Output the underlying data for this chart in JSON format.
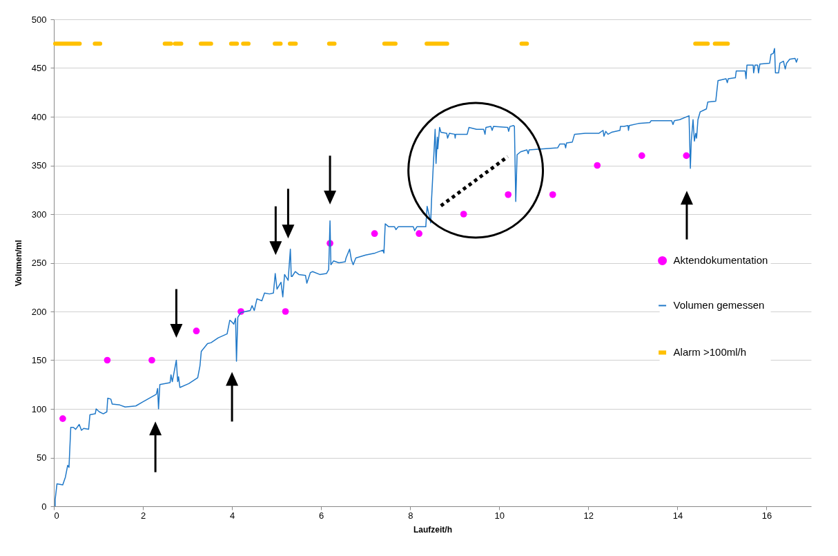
{
  "chart_data": {
    "type": "line",
    "xlabel": "Laufzeit/h",
    "ylabel": "Volumen/ml",
    "xlim": [
      0,
      17
    ],
    "xticks": [
      0,
      2,
      4,
      6,
      8,
      10,
      12,
      14,
      16
    ],
    "ylim": [
      0,
      500
    ],
    "yticks": [
      0,
      50,
      100,
      150,
      200,
      250,
      300,
      350,
      400,
      450,
      500
    ],
    "grid": "y",
    "legend": "right",
    "series": [
      {
        "name": "Aktendokumentation",
        "type": "scatter",
        "marker": "circle",
        "color": "#ff00ff",
        "x": [
          0.2,
          1.2,
          2.2,
          3.2,
          4.2,
          5.2,
          6.2,
          7.2,
          8.2,
          9.2,
          10.2,
          11.2,
          12.2,
          13.2,
          14.2
        ],
        "values": [
          90,
          150,
          150,
          180,
          200,
          200,
          270,
          280,
          280,
          300,
          320,
          320,
          350,
          360,
          360
        ]
      },
      {
        "name": "Volumen gemessen",
        "type": "line",
        "color": "#1f78c8",
        "x": [
          0.03,
          0.03,
          0.07,
          0.2,
          0.26,
          0.31,
          0.34,
          0.38,
          0.44,
          0.49,
          0.57,
          0.62,
          0.67,
          0.78,
          0.81,
          0.93,
          0.95,
          1.02,
          1.11,
          1.19,
          1.21,
          1.28,
          1.31,
          1.48,
          1.6,
          1.84,
          1.99,
          2.3,
          2.33,
          2.35,
          2.38,
          2.61,
          2.63,
          2.66,
          2.75,
          2.78,
          2.8,
          2.83,
          3.03,
          3.23,
          3.28,
          3.31,
          3.45,
          3.53,
          3.69,
          3.89,
          3.95,
          3.98,
          4.04,
          4.08,
          4.1,
          4.13,
          4.2,
          4.41,
          4.45,
          4.5,
          4.56,
          4.67,
          4.73,
          4.84,
          4.93,
          4.97,
          5.01,
          5.1,
          5.14,
          5.18,
          5.26,
          5.31,
          5.33,
          5.35,
          5.42,
          5.5,
          5.65,
          5.68,
          5.76,
          5.81,
          5.97,
          6.12,
          6.17,
          6.2,
          6.22,
          6.28,
          6.4,
          6.54,
          6.56,
          6.64,
          6.68,
          6.72,
          6.78,
          7.0,
          7.21,
          7.39,
          7.41,
          7.44,
          7.52,
          7.65,
          7.68,
          7.73,
          8.07,
          8.1,
          8.15,
          8.33,
          8.35,
          8.38,
          8.43,
          8.46,
          8.48,
          8.56,
          8.58,
          8.61,
          8.62,
          8.66,
          8.69,
          8.82,
          8.84,
          8.88,
          9.0,
          9.01,
          9.02,
          9.28,
          9.32,
          9.49,
          9.65,
          9.68,
          9.7,
          9.81,
          9.84,
          9.87,
          10.19,
          10.21,
          10.24,
          10.32,
          10.34,
          10.37,
          10.4,
          10.48,
          10.62,
          10.65,
          10.67,
          11.31,
          11.36,
          11.47,
          11.49,
          11.51,
          11.64,
          11.69,
          11.93,
          12.24,
          12.33,
          12.35,
          12.39,
          12.44,
          12.52,
          12.71,
          12.72,
          12.8,
          12.89,
          12.9,
          12.92,
          13.12,
          13.38,
          13.41,
          13.87,
          13.9,
          13.93,
          14.05,
          14.26,
          14.29,
          14.31,
          14.35,
          14.38,
          14.41,
          14.43,
          14.46,
          14.51,
          14.65,
          14.68,
          14.86,
          14.91,
          15.09,
          15.12,
          15.14,
          15.3,
          15.32,
          15.52,
          15.54,
          15.56,
          15.7,
          15.71,
          15.74,
          15.8,
          15.82,
          15.85,
          16.07,
          16.1,
          16.15,
          16.18,
          16.2,
          16.27,
          16.3,
          16.38,
          16.42,
          16.45,
          16.52,
          16.64,
          16.67,
          16.7
        ],
        "values": [
          0,
          7,
          23,
          22,
          30,
          42,
          40,
          81,
          81,
          79,
          84,
          78,
          80,
          79,
          94,
          95,
          100,
          97,
          95,
          97,
          111,
          110,
          105,
          104,
          102,
          103,
          107,
          115,
          121,
          100,
          125,
          127,
          135,
          128,
          150,
          128,
          133,
          122,
          126,
          132,
          144,
          159,
          167,
          168,
          173,
          177,
          191,
          190,
          187,
          193,
          149,
          194,
          199,
          201,
          206,
          201,
          213,
          211,
          219,
          218,
          219,
          239,
          223,
          230,
          215,
          238,
          232,
          264,
          236,
          236,
          241,
          238,
          237,
          229,
          240,
          241,
          238,
          239,
          243,
          293,
          248,
          252,
          250,
          251,
          255,
          264,
          253,
          248,
          255,
          258,
          260,
          263,
          260,
          290,
          287,
          287,
          284,
          287,
          287,
          283,
          287,
          287,
          287,
          308,
          298,
          291,
          315,
          387,
          352,
          379,
          367,
          389,
          384,
          383,
          378,
          383,
          382,
          378,
          382,
          382,
          389,
          387,
          387,
          382,
          389,
          390,
          386,
          390,
          389,
          385,
          390,
          391,
          390,
          313,
          361,
          364,
          366,
          362,
          366,
          368,
          372,
          372,
          368,
          373,
          374,
          382,
          383,
          383,
          386,
          380,
          385,
          382,
          384,
          386,
          390,
          390,
          391,
          386,
          391,
          393,
          394,
          396,
          396,
          392,
          396,
          397,
          401,
          347,
          375,
          397,
          375,
          383,
          378,
          397,
          405,
          408,
          415,
          416,
          437,
          439,
          435,
          439,
          440,
          447,
          447,
          439,
          453,
          453,
          445,
          453,
          453,
          445,
          454,
          455,
          464,
          465,
          470,
          445,
          445,
          455,
          457,
          449,
          455,
          459,
          460,
          456,
          460
        ]
      },
      {
        "name": "Alarm >100ml/h",
        "type": "line",
        "color": "#ffc000",
        "x": [
          0.03,
          0.58,
          0.75,
          0.92,
          1.04,
          1.8,
          2.49,
          2.63,
          2.68,
          2.72,
          2.86,
          3.1,
          3.3,
          3.53,
          3.75,
          3.98,
          4.11,
          4.18,
          4.25,
          4.37,
          4.7,
          4.96,
          5.09,
          5.2,
          5.3,
          5.43,
          5.8,
          6.18,
          6.3,
          6.9,
          7.42,
          7.67,
          8.0,
          8.37,
          8.83,
          9.7,
          10.5,
          10.62,
          12.5,
          14.4,
          14.68,
          14.76,
          14.84,
          15.13
        ],
        "values": [
          475,
          475,
          null,
          475,
          475,
          null,
          475,
          475,
          null,
          475,
          475,
          null,
          475,
          475,
          null,
          475,
          475,
          null,
          475,
          475,
          null,
          475,
          475,
          null,
          475,
          475,
          null,
          475,
          475,
          null,
          475,
          475,
          null,
          475,
          475,
          null,
          475,
          475,
          null,
          475,
          475,
          null,
          475,
          475
        ]
      },
      {
        "color": "#000000",
        "line_style": "dotted",
        "x": [
          8.69,
          10.19
        ],
        "values": [
          308.5,
          359
        ]
      }
    ]
  }
}
